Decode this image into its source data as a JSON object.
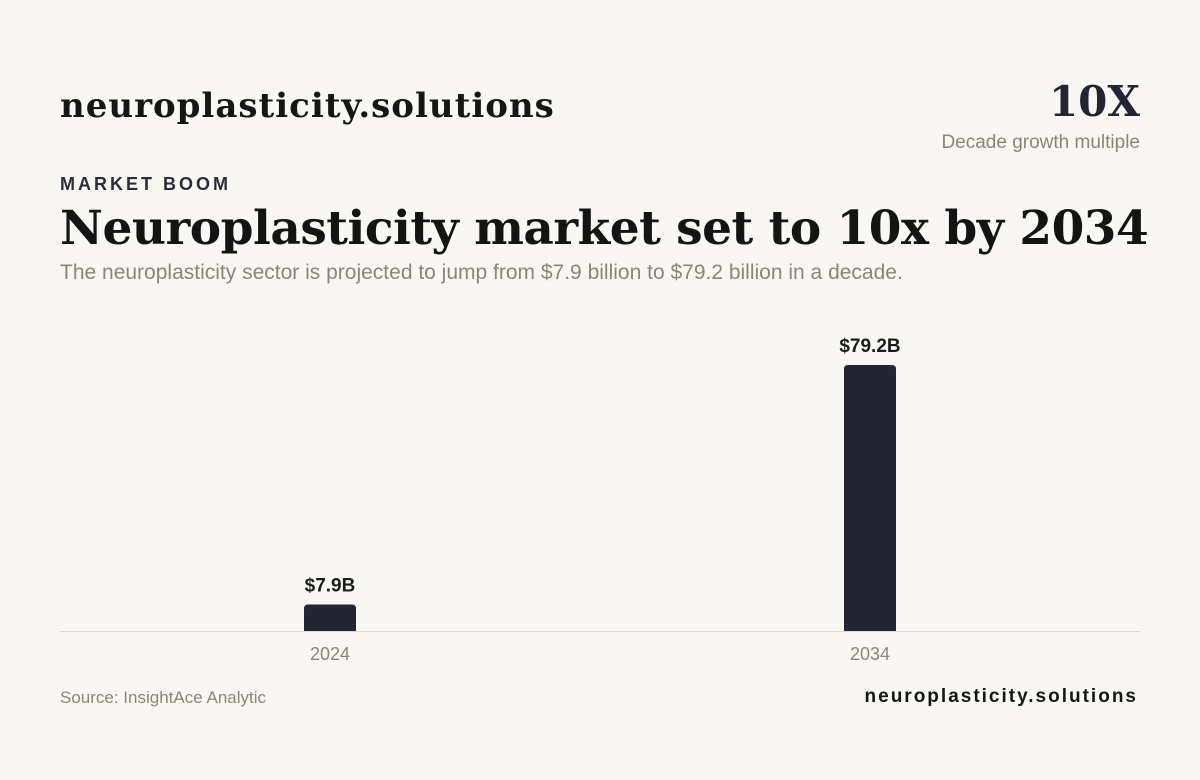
{
  "brand": "neuroplasticity.solutions",
  "stat": {
    "value": "10X",
    "label": "Decade growth multiple"
  },
  "eyebrow": "MARKET BOOM",
  "headline": "Neuroplasticity market set to 10x by 2034",
  "subtitle": "The neuroplasticity sector is projected to jump from $7.9  billion to $79.2 billion in a decade.",
  "source": "Source: InsightAce Analytic",
  "footer_brand": "neuroplasticity.solutions",
  "colors": {
    "background": "#f9f7f3",
    "bar": "#232532",
    "axis": "#dcd8d2",
    "muted": "#8a847c"
  },
  "chart_data": {
    "type": "bar",
    "categories": [
      "2024",
      "2034"
    ],
    "values": [
      7.9,
      79.2
    ],
    "value_labels": [
      "$7.9B",
      "$79.2B"
    ],
    "unit": "billion USD",
    "ylim": [
      0,
      79.2
    ],
    "grid": false
  }
}
